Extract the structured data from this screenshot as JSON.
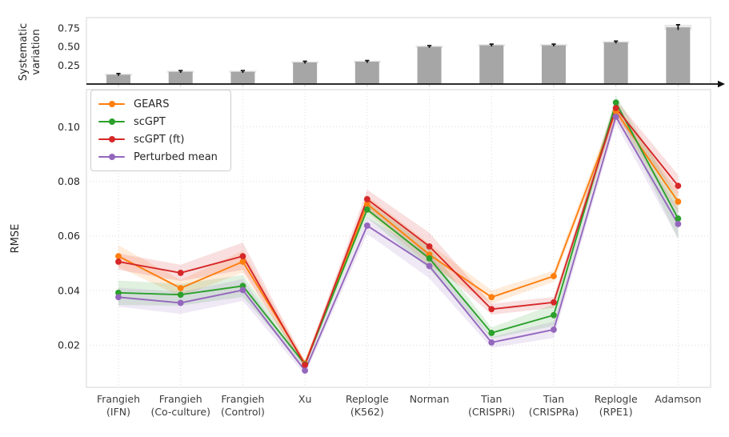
{
  "figure": {
    "background": "#ffffff",
    "axis_text_color": "#262626",
    "panel_border_color": "#d6d6d6",
    "grid_color": "#dcdcdc"
  },
  "chart_data": [
    {
      "type": "bar",
      "panel": "top",
      "ylabel_lines": [
        "Systematic",
        "variation"
      ],
      "categories": [
        "Frangieh (IFN)",
        "Frangieh (Co-culture)",
        "Frangieh (Control)",
        "Xu",
        "Replogle (K562)",
        "Norman",
        "Tian (CRISPRi)",
        "Tian (CRISPRa)",
        "Replogle (RPE1)",
        "Adamson"
      ],
      "values": [
        0.125,
        0.165,
        0.165,
        0.29,
        0.3,
        0.5,
        0.52,
        0.52,
        0.56,
        0.76
      ],
      "errors": [
        0.015,
        0.015,
        0.015,
        0.015,
        0.015,
        0.015,
        0.015,
        0.015,
        0.015,
        0.035
      ],
      "bar_color": "#a6a6a6",
      "error_color": "#141414",
      "ytick_values": [
        0.25,
        0.5,
        0.75
      ],
      "ytick_labels": [
        "0.25",
        "0.50",
        "0.75"
      ],
      "ylim": [
        0,
        0.89
      ],
      "grid": false,
      "axis_arrow": true
    },
    {
      "type": "line",
      "panel": "bottom",
      "ylabel": "RMSE",
      "categories": [
        "Frangieh (IFN)",
        "Frangieh (Co-culture)",
        "Frangieh (Control)",
        "Xu",
        "Replogle (K562)",
        "Norman",
        "Tian (CRISPRi)",
        "Tian (CRISPRa)",
        "Replogle (RPE1)",
        "Adamson"
      ],
      "category_label_lines": [
        [
          "Frangieh",
          "(IFN)"
        ],
        [
          "Frangieh",
          "(Co-culture)"
        ],
        [
          "Frangieh",
          "(Control)"
        ],
        [
          "Xu",
          ""
        ],
        [
          "Replogle",
          "(K562)"
        ],
        [
          "Norman",
          ""
        ],
        [
          "Tian",
          "(CRISPRi)"
        ],
        [
          "Tian",
          "(CRISPRa)"
        ],
        [
          "Replogle",
          "(RPE1)"
        ],
        [
          "Adamson",
          ""
        ]
      ],
      "series": [
        {
          "name": "GEARS",
          "color": "#ff7f0e",
          "values": [
            0.0526,
            0.0409,
            0.0506,
            0.0133,
            0.0717,
            0.0532,
            0.0376,
            0.0453,
            0.1057,
            0.0726
          ],
          "band": [
            0.004,
            0.003,
            0.004,
            0.0012,
            0.003,
            0.004,
            0.0025,
            0.002,
            0.0025,
            0.004
          ]
        },
        {
          "name": "scGPT",
          "color": "#2ca02c",
          "values": [
            0.0392,
            0.0385,
            0.0417,
            0.013,
            0.0697,
            0.0518,
            0.0245,
            0.031,
            0.1089,
            0.0664
          ],
          "band": [
            0.0045,
            0.004,
            0.004,
            0.0012,
            0.003,
            0.004,
            0.002,
            0.004,
            0.0025,
            0.0075
          ]
        },
        {
          "name": "scGPT (ft)",
          "color": "#d62728",
          "values": [
            0.0506,
            0.0465,
            0.0526,
            0.0128,
            0.0735,
            0.0562,
            0.0332,
            0.0357,
            0.1069,
            0.0784
          ],
          "band": [
            0.003,
            0.003,
            0.005,
            0.0012,
            0.0035,
            0.005,
            0.002,
            0.002,
            0.003,
            0.004
          ]
        },
        {
          "name": "Perturbed mean",
          "color": "#9467bd",
          "values": [
            0.0376,
            0.0355,
            0.0402,
            0.0107,
            0.0638,
            0.049,
            0.021,
            0.0257,
            0.1037,
            0.0644
          ],
          "band": [
            0.0035,
            0.004,
            0.004,
            0.0015,
            0.003,
            0.0045,
            0.002,
            0.003,
            0.0025,
            0.0055
          ]
        }
      ],
      "ytick_values": [
        0.02,
        0.04,
        0.06,
        0.08,
        0.1
      ],
      "ytick_labels": [
        "0.02",
        "0.04",
        "0.06",
        "0.08",
        "0.10"
      ],
      "ylim": [
        0.004,
        0.114
      ],
      "grid": true,
      "legend_position": "upper left",
      "band_opacity": 0.15
    }
  ]
}
